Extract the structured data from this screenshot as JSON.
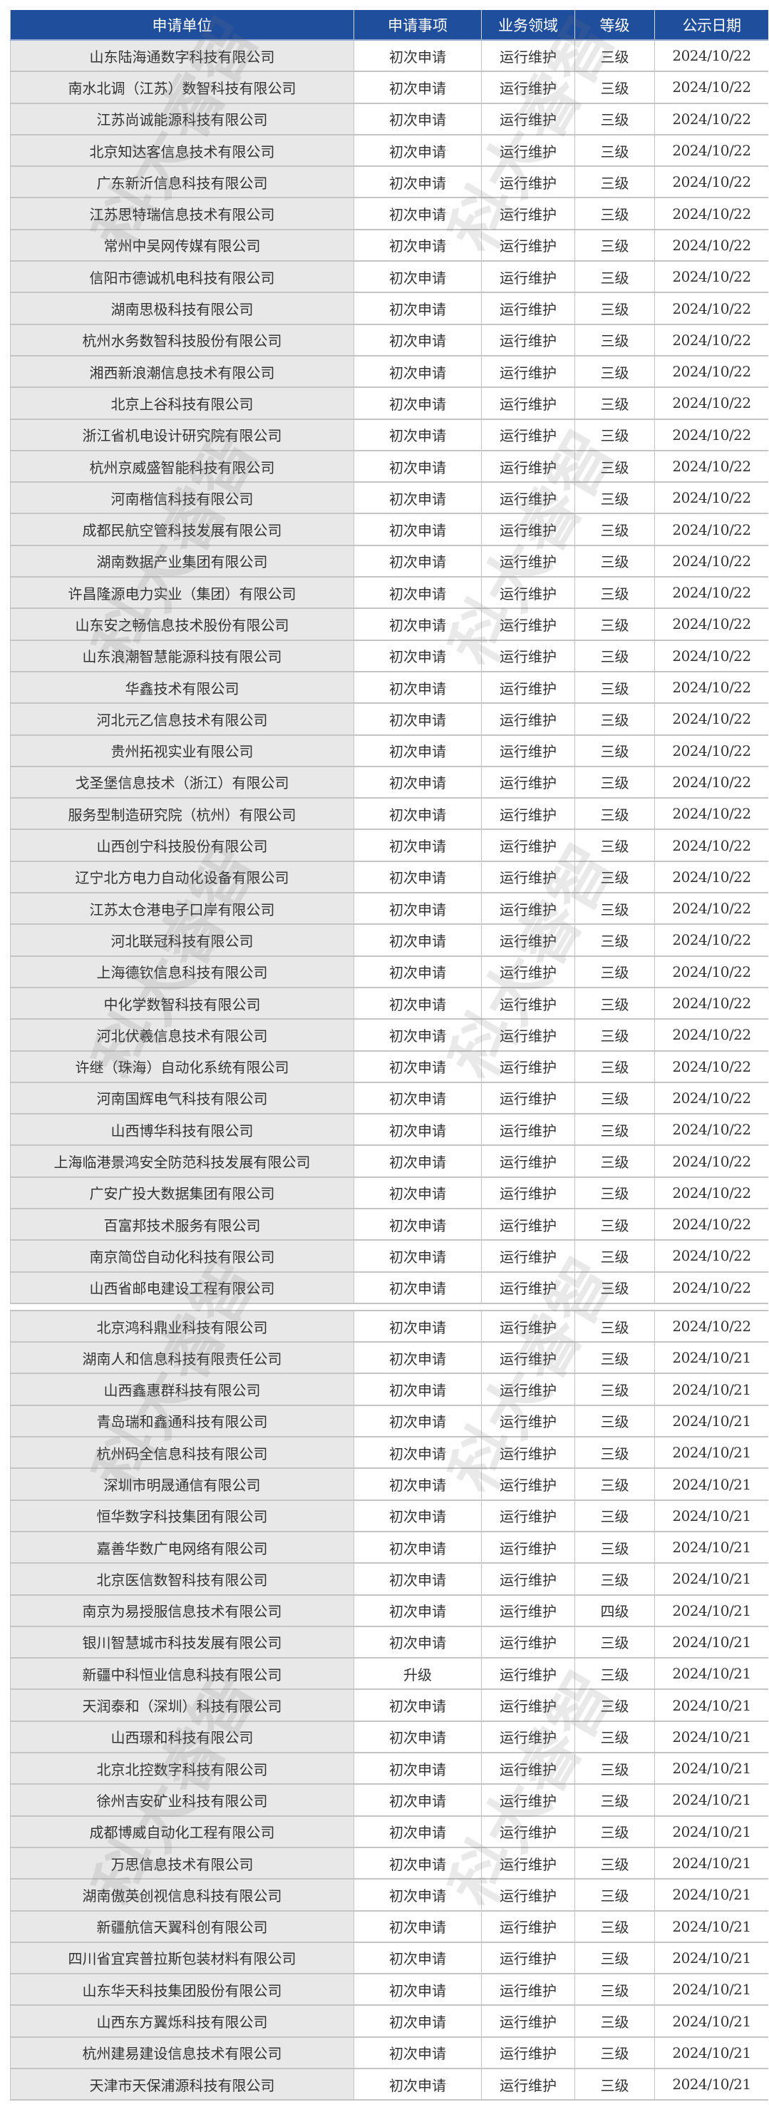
{
  "watermark": "科大睿智",
  "colors": {
    "header_bg": "#1f4e9c",
    "name_col_bg": "#e8e8e8",
    "border": "#c4c4c4"
  },
  "table": {
    "headers": [
      "申请单位",
      "申请事项",
      "业务领域",
      "等级",
      "公示日期"
    ],
    "group1": [
      [
        "山东陆海通数字科技有限公司",
        "初次申请",
        "运行维护",
        "三级",
        "2024/10/22"
      ],
      [
        "南水北调（江苏）数智科技有限公司",
        "初次申请",
        "运行维护",
        "三级",
        "2024/10/22"
      ],
      [
        "江苏尚诚能源科技有限公司",
        "初次申请",
        "运行维护",
        "三级",
        "2024/10/22"
      ],
      [
        "北京知达客信息技术有限公司",
        "初次申请",
        "运行维护",
        "三级",
        "2024/10/22"
      ],
      [
        "广东新沂信息科技有限公司",
        "初次申请",
        "运行维护",
        "三级",
        "2024/10/22"
      ],
      [
        "江苏思特瑞信息技术有限公司",
        "初次申请",
        "运行维护",
        "三级",
        "2024/10/22"
      ],
      [
        "常州中吴网传媒有限公司",
        "初次申请",
        "运行维护",
        "三级",
        "2024/10/22"
      ],
      [
        "信阳市德诚机电科技有限公司",
        "初次申请",
        "运行维护",
        "三级",
        "2024/10/22"
      ],
      [
        "湖南思极科技有限公司",
        "初次申请",
        "运行维护",
        "三级",
        "2024/10/22"
      ],
      [
        "杭州水务数智科技股份有限公司",
        "初次申请",
        "运行维护",
        "三级",
        "2024/10/22"
      ],
      [
        "湘西新浪潮信息技术有限公司",
        "初次申请",
        "运行维护",
        "三级",
        "2024/10/22"
      ],
      [
        "北京上谷科技有限公司",
        "初次申请",
        "运行维护",
        "三级",
        "2024/10/22"
      ],
      [
        "浙江省机电设计研究院有限公司",
        "初次申请",
        "运行维护",
        "三级",
        "2024/10/22"
      ],
      [
        "杭州京威盛智能科技有限公司",
        "初次申请",
        "运行维护",
        "三级",
        "2024/10/22"
      ],
      [
        "河南楷信科技有限公司",
        "初次申请",
        "运行维护",
        "三级",
        "2024/10/22"
      ],
      [
        "成都民航空管科技发展有限公司",
        "初次申请",
        "运行维护",
        "三级",
        "2024/10/22"
      ],
      [
        "湖南数据产业集团有限公司",
        "初次申请",
        "运行维护",
        "三级",
        "2024/10/22"
      ],
      [
        "许昌隆源电力实业（集团）有限公司",
        "初次申请",
        "运行维护",
        "三级",
        "2024/10/22"
      ],
      [
        "山东安之畅信息技术股份有限公司",
        "初次申请",
        "运行维护",
        "三级",
        "2024/10/22"
      ],
      [
        "山东浪潮智慧能源科技有限公司",
        "初次申请",
        "运行维护",
        "三级",
        "2024/10/22"
      ],
      [
        "华鑫技术有限公司",
        "初次申请",
        "运行维护",
        "三级",
        "2024/10/22"
      ],
      [
        "河北元乙信息技术有限公司",
        "初次申请",
        "运行维护",
        "三级",
        "2024/10/22"
      ],
      [
        "贵州拓视实业有限公司",
        "初次申请",
        "运行维护",
        "三级",
        "2024/10/22"
      ],
      [
        "戈圣堡信息技术（浙江）有限公司",
        "初次申请",
        "运行维护",
        "三级",
        "2024/10/22"
      ],
      [
        "服务型制造研究院（杭州）有限公司",
        "初次申请",
        "运行维护",
        "三级",
        "2024/10/22"
      ],
      [
        "山西创宁科技股份有限公司",
        "初次申请",
        "运行维护",
        "三级",
        "2024/10/22"
      ],
      [
        "辽宁北方电力自动化设备有限公司",
        "初次申请",
        "运行维护",
        "三级",
        "2024/10/22"
      ],
      [
        "江苏太仓港电子口岸有限公司",
        "初次申请",
        "运行维护",
        "三级",
        "2024/10/22"
      ],
      [
        "河北联冠科技有限公司",
        "初次申请",
        "运行维护",
        "三级",
        "2024/10/22"
      ],
      [
        "上海德钦信息科技有限公司",
        "初次申请",
        "运行维护",
        "三级",
        "2024/10/22"
      ],
      [
        "中化学数智科技有限公司",
        "初次申请",
        "运行维护",
        "三级",
        "2024/10/22"
      ],
      [
        "河北伏羲信息技术有限公司",
        "初次申请",
        "运行维护",
        "三级",
        "2024/10/22"
      ],
      [
        "许继（珠海）自动化系统有限公司",
        "初次申请",
        "运行维护",
        "三级",
        "2024/10/22"
      ],
      [
        "河南国辉电气科技有限公司",
        "初次申请",
        "运行维护",
        "三级",
        "2024/10/22"
      ],
      [
        "山西博华科技有限公司",
        "初次申请",
        "运行维护",
        "三级",
        "2024/10/22"
      ],
      [
        "上海临港景鸿安全防范科技发展有限公司",
        "初次申请",
        "运行维护",
        "三级",
        "2024/10/22"
      ],
      [
        "广安广投大数据集团有限公司",
        "初次申请",
        "运行维护",
        "三级",
        "2024/10/22"
      ],
      [
        "百富邦技术服务有限公司",
        "初次申请",
        "运行维护",
        "三级",
        "2024/10/22"
      ],
      [
        "南京简岱自动化科技有限公司",
        "初次申请",
        "运行维护",
        "三级",
        "2024/10/22"
      ],
      [
        "山西省邮电建设工程有限公司",
        "初次申请",
        "运行维护",
        "三级",
        "2024/10/22"
      ]
    ],
    "group2": [
      [
        "北京鸿科鼎业科技有限公司",
        "初次申请",
        "运行维护",
        "三级",
        "2024/10/22"
      ],
      [
        "湖南人和信息科技有限责任公司",
        "初次申请",
        "运行维护",
        "三级",
        "2024/10/21"
      ],
      [
        "山西鑫惠群科技有限公司",
        "初次申请",
        "运行维护",
        "三级",
        "2024/10/21"
      ],
      [
        "青岛瑞和鑫通科技有限公司",
        "初次申请",
        "运行维护",
        "三级",
        "2024/10/21"
      ],
      [
        "杭州码全信息科技有限公司",
        "初次申请",
        "运行维护",
        "三级",
        "2024/10/21"
      ],
      [
        "深圳市明晟通信有限公司",
        "初次申请",
        "运行维护",
        "三级",
        "2024/10/21"
      ],
      [
        "恒华数字科技集团有限公司",
        "初次申请",
        "运行维护",
        "三级",
        "2024/10/21"
      ],
      [
        "嘉善华数广电网络有限公司",
        "初次申请",
        "运行维护",
        "三级",
        "2024/10/21"
      ],
      [
        "北京医信数智科技有限公司",
        "初次申请",
        "运行维护",
        "三级",
        "2024/10/21"
      ],
      [
        "南京为易授服信息技术有限公司",
        "初次申请",
        "运行维护",
        "四级",
        "2024/10/21"
      ],
      [
        "银川智慧城市科技发展有限公司",
        "初次申请",
        "运行维护",
        "三级",
        "2024/10/21"
      ],
      [
        "新疆中科恒业信息科技有限公司",
        "升级",
        "运行维护",
        "三级",
        "2024/10/21"
      ],
      [
        "天润泰和（深圳）科技有限公司",
        "初次申请",
        "运行维护",
        "三级",
        "2024/10/21"
      ],
      [
        "山西璟和科技有限公司",
        "初次申请",
        "运行维护",
        "三级",
        "2024/10/21"
      ],
      [
        "北京北控数字科技有限公司",
        "初次申请",
        "运行维护",
        "三级",
        "2024/10/21"
      ],
      [
        "徐州吉安矿业科技有限公司",
        "初次申请",
        "运行维护",
        "三级",
        "2024/10/21"
      ],
      [
        "成都博威自动化工程有限公司",
        "初次申请",
        "运行维护",
        "三级",
        "2024/10/21"
      ],
      [
        "万思信息技术有限公司",
        "初次申请",
        "运行维护",
        "三级",
        "2024/10/21"
      ],
      [
        "湖南傲英创视信息科技有限公司",
        "初次申请",
        "运行维护",
        "三级",
        "2024/10/21"
      ],
      [
        "新疆航信天翼科创有限公司",
        "初次申请",
        "运行维护",
        "三级",
        "2024/10/21"
      ],
      [
        "四川省宜宾普拉斯包装材料有限公司",
        "初次申请",
        "运行维护",
        "三级",
        "2024/10/21"
      ],
      [
        "山东华天科技集团股份有限公司",
        "初次申请",
        "运行维护",
        "三级",
        "2024/10/21"
      ],
      [
        "山西东方翼烁科技有限公司",
        "初次申请",
        "运行维护",
        "三级",
        "2024/10/21"
      ],
      [
        "杭州建易建设信息技术有限公司",
        "初次申请",
        "运行维护",
        "三级",
        "2024/10/21"
      ],
      [
        "天津市天保浦源科技有限公司",
        "初次申请",
        "运行维护",
        "三级",
        "2024/10/21"
      ]
    ]
  }
}
